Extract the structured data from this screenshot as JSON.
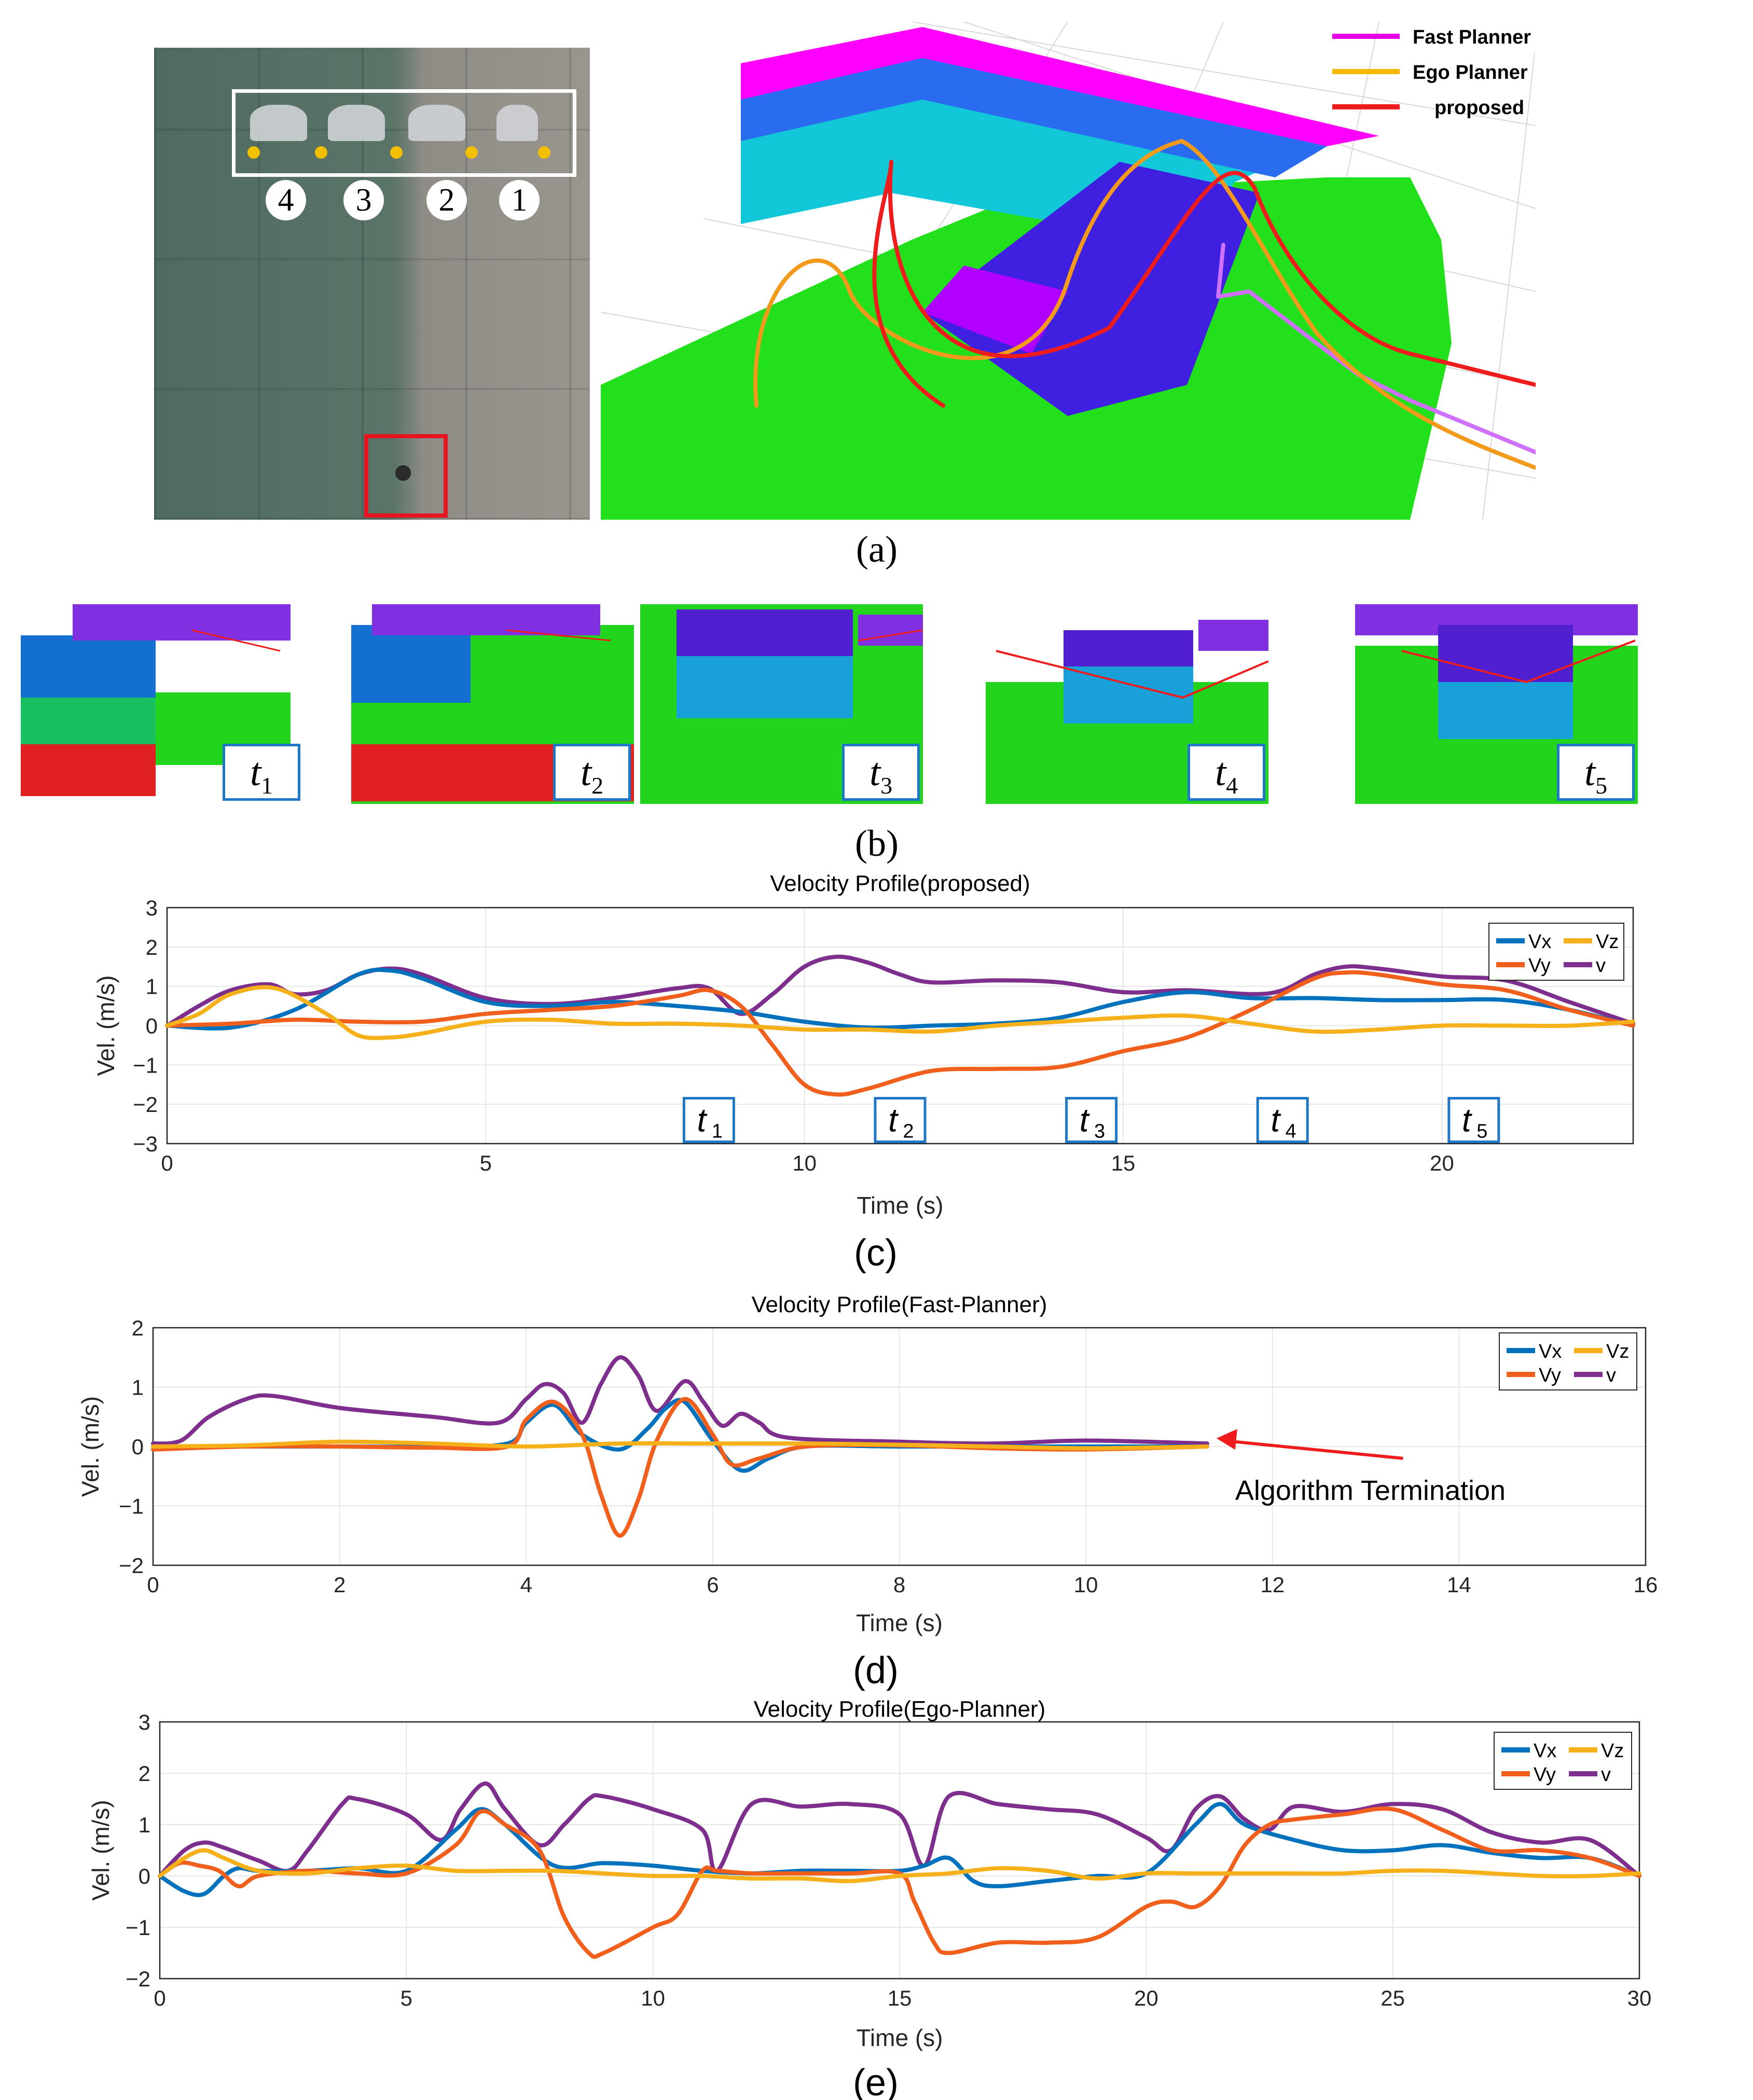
{
  "panel_a": {
    "caption": "(a)",
    "photo_numbers": [
      "4",
      "3",
      "2",
      "1"
    ],
    "legend": [
      {
        "label": "Fast Planner",
        "color": "#e600e6"
      },
      {
        "label": "Ego Planner",
        "color": "#f5b800"
      },
      {
        "label": "proposed",
        "color": "#ee1c1c"
      }
    ]
  },
  "panel_b": {
    "caption": "(b)",
    "labels": [
      {
        "t": "t",
        "sub": "1"
      },
      {
        "t": "t",
        "sub": "2"
      },
      {
        "t": "t",
        "sub": "3"
      },
      {
        "t": "t",
        "sub": "4"
      },
      {
        "t": "t",
        "sub": "5"
      }
    ]
  },
  "colors": {
    "vx": "#0072bd",
    "vy": "#f0601c",
    "vz": "#f5b01a",
    "v": "#7e2f8e"
  },
  "chart_data": [
    {
      "type": "line",
      "caption": "(c)",
      "title": "Velocity Profile(proposed)",
      "xlabel": "Time (s)",
      "ylabel": "Vel. (m/s)",
      "xlim": [
        0,
        23
      ],
      "ylim": [
        -3,
        3
      ],
      "xticks": [
        0,
        5,
        10,
        15,
        20
      ],
      "yticks": [
        -3,
        -2,
        -1,
        0,
        1,
        2,
        3
      ],
      "grid": true,
      "legend_position": "top-right",
      "annotations": [
        {
          "x": 8.5,
          "y": -2.4,
          "t": "t",
          "sub": "1"
        },
        {
          "x": 11.5,
          "y": -2.4,
          "t": "t",
          "sub": "2"
        },
        {
          "x": 14.5,
          "y": -2.4,
          "t": "t",
          "sub": "3"
        },
        {
          "x": 17.5,
          "y": -2.4,
          "t": "t",
          "sub": "4"
        },
        {
          "x": 20.5,
          "y": -2.4,
          "t": "t",
          "sub": "5"
        }
      ],
      "series": [
        {
          "name": "Vx",
          "key": "vx",
          "x": [
            0,
            1,
            2,
            3,
            3.5,
            4,
            5,
            6,
            7,
            8,
            9,
            10,
            11,
            12,
            13,
            14,
            15,
            16,
            17,
            18,
            19,
            20,
            21,
            22,
            23
          ],
          "y": [
            0,
            -0.05,
            0.4,
            1.3,
            1.4,
            1.2,
            0.6,
            0.5,
            0.6,
            0.5,
            0.35,
            0.1,
            -0.05,
            0,
            0.05,
            0.2,
            0.6,
            0.85,
            0.7,
            0.7,
            0.65,
            0.65,
            0.65,
            0.4,
            0
          ]
        },
        {
          "name": "Vy",
          "key": "vy",
          "x": [
            0,
            1,
            2,
            3,
            4,
            5,
            6,
            7,
            8,
            8.5,
            9,
            9.5,
            10,
            10.5,
            11,
            12,
            13,
            14,
            15,
            16,
            17,
            18,
            18.5,
            19,
            20,
            21,
            22,
            23
          ],
          "y": [
            0,
            0.05,
            0.15,
            0.1,
            0.1,
            0.3,
            0.4,
            0.5,
            0.75,
            0.9,
            0.5,
            -0.5,
            -1.5,
            -1.75,
            -1.6,
            -1.15,
            -1.1,
            -1.05,
            -0.65,
            -0.3,
            0.4,
            1.2,
            1.35,
            1.3,
            1.05,
            0.9,
            0.4,
            0
          ]
        },
        {
          "name": "Vz",
          "key": "vz",
          "x": [
            0,
            0.5,
            1,
            1.7,
            2.5,
            3,
            3.5,
            4,
            5,
            6,
            7,
            8,
            9,
            10,
            11,
            12,
            13,
            14,
            15,
            16,
            17,
            18,
            19,
            20,
            21,
            22,
            23
          ],
          "y": [
            0,
            0.3,
            0.8,
            0.95,
            0.3,
            -0.25,
            -0.3,
            -0.2,
            0.1,
            0.15,
            0.05,
            0.05,
            0,
            -0.1,
            -0.1,
            -0.15,
            0,
            0.1,
            0.2,
            0.25,
            0.05,
            -0.15,
            -0.1,
            0,
            0,
            0,
            0.1
          ]
        },
        {
          "name": "v",
          "key": "v",
          "x": [
            0,
            0.5,
            1,
            1.6,
            2,
            2.5,
            3,
            3.5,
            4,
            5,
            6,
            7,
            8,
            8.5,
            9,
            9.5,
            10,
            10.5,
            11,
            11.5,
            12,
            13,
            14,
            15,
            16,
            17,
            17.5,
            18,
            18.5,
            19,
            20,
            21,
            22,
            23
          ],
          "y": [
            0,
            0.5,
            0.9,
            1.05,
            0.8,
            0.9,
            1.3,
            1.45,
            1.3,
            0.7,
            0.55,
            0.7,
            0.95,
            0.95,
            0.3,
            0.8,
            1.5,
            1.75,
            1.6,
            1.3,
            1.1,
            1.15,
            1.1,
            0.85,
            0.9,
            0.8,
            0.9,
            1.3,
            1.5,
            1.45,
            1.25,
            1.15,
            0.6,
            0.05
          ]
        }
      ]
    },
    {
      "type": "line",
      "caption": "(d)",
      "title": "Velocity Profile(Fast-Planner)",
      "xlabel": "Time (s)",
      "ylabel": "Vel. (m/s)",
      "xlim": [
        0,
        16
      ],
      "ylim": [
        -2,
        2
      ],
      "xticks": [
        0,
        2,
        4,
        6,
        8,
        10,
        12,
        14,
        16
      ],
      "yticks": [
        -2,
        -1,
        0,
        1,
        2
      ],
      "grid": true,
      "legend_position": "top-right",
      "annotation_text": "Algorithm Termination",
      "annotation_arrow_to": {
        "x": 11.4,
        "y": 0.05
      },
      "series": [
        {
          "name": "Vx",
          "key": "vx",
          "x": [
            0,
            1,
            2,
            3,
            3.8,
            4,
            4.3,
            4.6,
            5,
            5.3,
            5.5,
            5.7,
            6,
            6.3,
            6.6,
            7,
            8,
            9,
            10,
            11.3
          ],
          "y": [
            0,
            0,
            0,
            0,
            0.05,
            0.4,
            0.7,
            0.2,
            -0.05,
            0.3,
            0.65,
            0.75,
            0.1,
            -0.4,
            -0.2,
            0,
            0,
            0,
            0,
            0
          ]
        },
        {
          "name": "Vy",
          "key": "vy",
          "x": [
            0,
            1,
            2,
            3,
            3.8,
            4,
            4.3,
            4.6,
            4.8,
            5,
            5.2,
            5.4,
            5.7,
            6,
            6.2,
            6.5,
            7,
            8,
            9,
            10,
            11.3
          ],
          "y": [
            -0.05,
            0,
            0,
            -0.02,
            0,
            0.45,
            0.75,
            0.2,
            -0.8,
            -1.5,
            -0.9,
            0.1,
            0.8,
            0.2,
            -0.3,
            -0.2,
            0,
            0.02,
            -0.03,
            -0.05,
            0
          ]
        },
        {
          "name": "Vz",
          "key": "vz",
          "x": [
            0,
            1,
            2,
            3,
            4,
            5,
            6,
            7,
            8,
            9,
            10,
            11.3
          ],
          "y": [
            0,
            0.02,
            0.08,
            0.05,
            0,
            0.05,
            0.05,
            0.05,
            0.03,
            0,
            -0.03,
            0
          ]
        },
        {
          "name": "v",
          "key": "v",
          "x": [
            0,
            0.3,
            0.6,
            1,
            1.3,
            2,
            3,
            3.7,
            4,
            4.2,
            4.4,
            4.6,
            4.8,
            5,
            5.2,
            5.4,
            5.7,
            5.9,
            6.1,
            6.3,
            6.5,
            6.8,
            8,
            9,
            10,
            11.3
          ],
          "y": [
            0.05,
            0.1,
            0.5,
            0.8,
            0.85,
            0.65,
            0.5,
            0.4,
            0.8,
            1.05,
            0.9,
            0.4,
            1.05,
            1.5,
            1.2,
            0.6,
            1.1,
            0.75,
            0.35,
            0.55,
            0.4,
            0.15,
            0.08,
            0.05,
            0.1,
            0.05
          ]
        }
      ]
    },
    {
      "type": "line",
      "caption": "(e)",
      "title": "Velocity Profile(Ego-Planner)",
      "xlabel": "Time (s)",
      "ylabel": "Vel. (m/s)",
      "xlim": [
        0,
        30
      ],
      "ylim": [
        -2,
        3
      ],
      "xticks": [
        0,
        5,
        10,
        15,
        20,
        25,
        30
      ],
      "yticks": [
        -2,
        -1,
        0,
        1,
        2,
        3
      ],
      "grid": true,
      "legend_position": "top-right",
      "series": [
        {
          "name": "Vx",
          "key": "vx",
          "x": [
            0,
            0.5,
            0.9,
            1.3,
            1.6,
            2,
            3,
            4,
            5,
            6,
            6.5,
            7,
            8,
            9,
            10,
            11,
            12,
            13,
            14,
            15,
            15.5,
            16,
            16.5,
            17,
            18,
            19,
            20,
            21,
            21.5,
            22,
            23,
            24,
            25,
            26,
            27,
            28,
            29,
            30
          ],
          "y": [
            0,
            -0.3,
            -0.35,
            0,
            0.15,
            0.1,
            0.1,
            0.15,
            0.1,
            0.9,
            1.3,
            1.0,
            0.2,
            0.25,
            0.2,
            0.1,
            0.05,
            0.1,
            0.1,
            0.1,
            0.2,
            0.35,
            -0.1,
            -0.2,
            -0.1,
            0,
            0.05,
            1.0,
            1.4,
            1.0,
            0.7,
            0.5,
            0.5,
            0.6,
            0.45,
            0.35,
            0.35,
            0
          ]
        },
        {
          "name": "Vy",
          "key": "vy",
          "x": [
            0,
            0.4,
            0.8,
            1.2,
            1.6,
            2,
            3,
            4,
            5,
            6,
            6.5,
            7,
            7.7,
            8.2,
            8.7,
            9,
            10,
            10.5,
            11,
            11.3,
            12,
            13,
            14,
            15,
            15.3,
            15.7,
            16,
            17,
            18,
            19,
            20,
            20.5,
            21,
            21.5,
            22,
            22.5,
            23,
            24,
            25,
            26,
            27,
            28,
            29,
            30
          ],
          "y": [
            0,
            0.25,
            0.2,
            0.1,
            -0.2,
            0,
            0.1,
            0.05,
            0.05,
            0.6,
            1.25,
            1.0,
            0.5,
            -0.8,
            -1.5,
            -1.5,
            -1.0,
            -0.75,
            0.1,
            0.1,
            0.05,
            0.05,
            0.05,
            0.05,
            -0.5,
            -1.3,
            -1.5,
            -1.3,
            -1.3,
            -1.2,
            -0.6,
            -0.5,
            -0.6,
            -0.2,
            0.6,
            1.0,
            1.1,
            1.2,
            1.3,
            0.9,
            0.5,
            0.5,
            0.35,
            0
          ]
        },
        {
          "name": "Vz",
          "key": "vz",
          "x": [
            0,
            0.5,
            0.9,
            1.3,
            2,
            3,
            4,
            5,
            6,
            7,
            8,
            9,
            10,
            11,
            12,
            13,
            14,
            15,
            16,
            17,
            18,
            19,
            20,
            21,
            22,
            23,
            24,
            25,
            26,
            27,
            28,
            29,
            30
          ],
          "y": [
            0,
            0.35,
            0.5,
            0.35,
            0.1,
            0.05,
            0.15,
            0.2,
            0.1,
            0.1,
            0.1,
            0.05,
            0,
            0,
            -0.05,
            -0.05,
            -0.1,
            0,
            0.05,
            0.15,
            0.1,
            -0.05,
            0.05,
            0.05,
            0.05,
            0.05,
            0.05,
            0.1,
            0.1,
            0.05,
            0,
            0,
            0.05
          ]
        },
        {
          "name": "v",
          "key": "v",
          "x": [
            0,
            0.5,
            0.9,
            1.3,
            2,
            2.6,
            3,
            3.7,
            4,
            5,
            5.7,
            6.1,
            6.6,
            7,
            7.7,
            8.2,
            8.7,
            9,
            10,
            11,
            11.3,
            12,
            13,
            14,
            15,
            15.5,
            16,
            17,
            18,
            19,
            20,
            20.5,
            21,
            21.5,
            22,
            22.5,
            23,
            24,
            25,
            26,
            27,
            28,
            29,
            30
          ],
          "y": [
            0,
            0.5,
            0.65,
            0.55,
            0.3,
            0.1,
            0.5,
            1.4,
            1.5,
            1.2,
            0.7,
            1.3,
            1.8,
            1.3,
            0.6,
            1.0,
            1.5,
            1.55,
            1.3,
            0.9,
            0.1,
            1.4,
            1.35,
            1.4,
            1.2,
            0.2,
            1.55,
            1.4,
            1.3,
            1.2,
            0.75,
            0.5,
            1.3,
            1.55,
            1.1,
            0.9,
            1.35,
            1.25,
            1.4,
            1.3,
            0.85,
            0.65,
            0.7,
            0
          ]
        }
      ]
    }
  ]
}
